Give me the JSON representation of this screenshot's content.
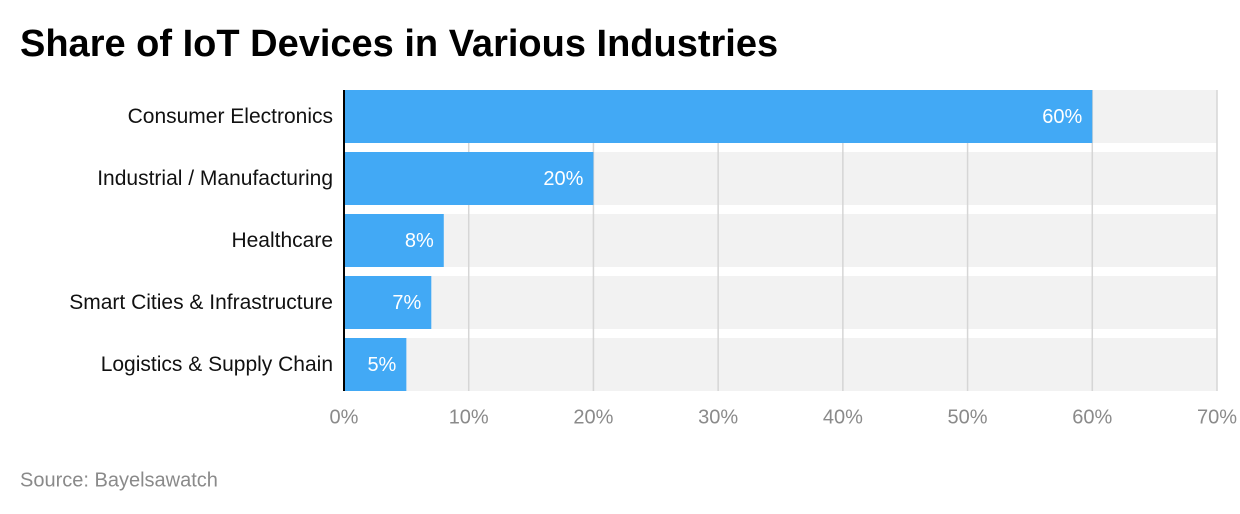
{
  "chart_data": {
    "type": "bar",
    "orientation": "horizontal",
    "title": "Share of IoT Devices in Various Industries",
    "categories": [
      "Consumer Electronics",
      "Industrial / Manufacturing",
      "Healthcare",
      "Smart Cities & Infrastructure",
      "Logistics & Supply Chain"
    ],
    "values": [
      60,
      20,
      8,
      7,
      5
    ],
    "value_labels": [
      "60%",
      "20%",
      "8%",
      "7%",
      "5%"
    ],
    "color": "#42a9f5",
    "xlim": [
      0,
      70
    ],
    "xticks": [
      {
        "value": 0,
        "label": "0%"
      },
      {
        "value": 10,
        "label": "10%"
      },
      {
        "value": 20,
        "label": "20%"
      },
      {
        "value": 30,
        "label": "30%"
      },
      {
        "value": 40,
        "label": "40%"
      },
      {
        "value": 50,
        "label": "50%"
      },
      {
        "value": 60,
        "label": "60%"
      },
      {
        "value": 70,
        "label": "70%"
      }
    ],
    "grid": true,
    "source": "Source: Bayelsawatch"
  }
}
